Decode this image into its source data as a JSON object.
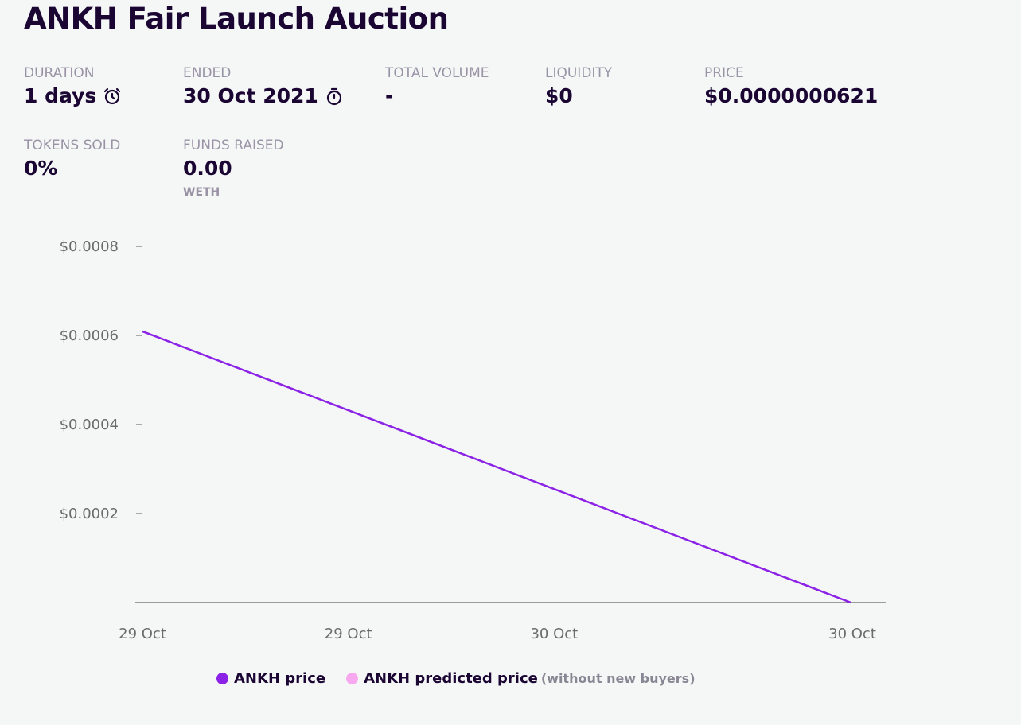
{
  "title": "ANKH Fair Launch Auction",
  "stats": {
    "duration": {
      "label": "DURATION",
      "value": "1 days",
      "icon": "alarm-clock-icon"
    },
    "ended": {
      "label": "ENDED",
      "value": "30 Oct 2021",
      "icon": "stopwatch-icon"
    },
    "total_volume": {
      "label": "TOTAL VOLUME",
      "value": "-"
    },
    "liquidity": {
      "label": "LIQUIDITY",
      "value": "$0"
    },
    "price": {
      "label": "PRICE",
      "value": "$0.0000000621"
    },
    "tokens_sold": {
      "label": "TOKENS SOLD",
      "value": "0%"
    },
    "funds_raised": {
      "label": "FUNDS RAISED",
      "value": "0.00",
      "unit": "WETH"
    }
  },
  "colors": {
    "price_line": "#8b22e6",
    "predicted": "#f7a8ef",
    "axis": "#555555"
  },
  "chart_data": {
    "type": "line",
    "title": "",
    "xlabel": "",
    "ylabel": "",
    "x_ticks": [
      "29 Oct",
      "29 Oct",
      "30 Oct",
      "30 Oct"
    ],
    "x_tick_positions": [
      0,
      0.29,
      0.58,
      1.0
    ],
    "y_ticks": [
      0.0002,
      0.0004,
      0.0006,
      0.0008
    ],
    "y_tick_labels": [
      "$0.0002",
      "$0.0004",
      "$0.0006",
      "$0.0008"
    ],
    "ylim": [
      0,
      0.0008
    ],
    "xlim": [
      0,
      1
    ],
    "grid": false,
    "legend_position": "bottom",
    "series": [
      {
        "name": "ANKH price",
        "x": [
          0,
          0.998
        ],
        "values": [
          0.000609,
          0.0
        ]
      },
      {
        "name": "ANKH predicted price",
        "x": [],
        "values": [],
        "note": "(without new buyers)"
      }
    ]
  }
}
